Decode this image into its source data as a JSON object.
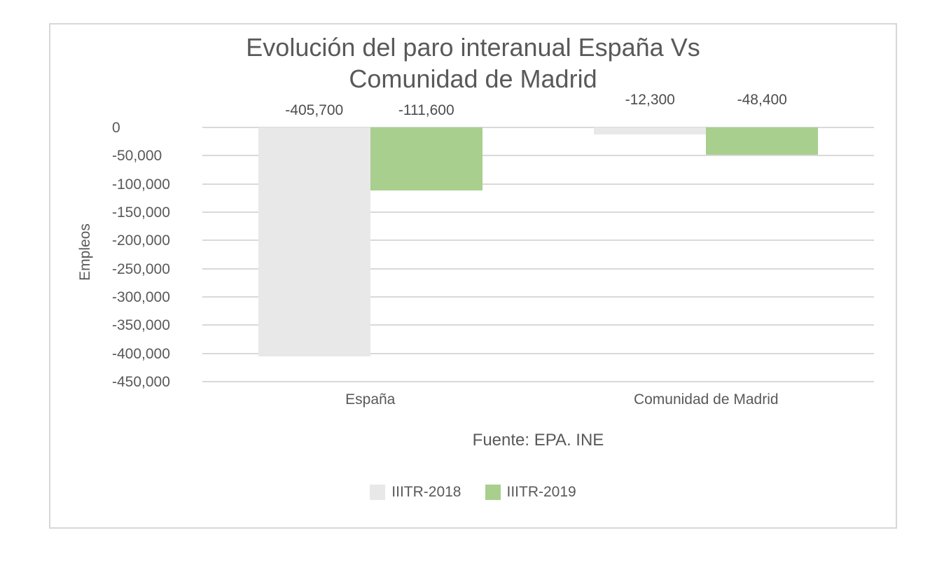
{
  "chart_data": {
    "type": "bar",
    "title": [
      "Evolución del paro interanual España Vs",
      "Comunidad de Madrid"
    ],
    "ylabel": "Empleos",
    "source_note": "Fuente: EPA. INE",
    "categories": [
      "España",
      "Comunidad de Madrid"
    ],
    "series": [
      {
        "name": "IIITR-2018",
        "color": "#E8E8E8",
        "values": [
          -405700,
          -12300
        ],
        "labels": [
          "-405,700",
          "-12,300"
        ]
      },
      {
        "name": "IIITR-2019",
        "color": "#A8CF8D",
        "values": [
          -111600,
          -48400
        ],
        "labels": [
          "-111,600",
          "-48,400"
        ]
      }
    ],
    "ylim": [
      -450000,
      0
    ],
    "yticks": [
      0,
      -50000,
      -100000,
      -150000,
      -200000,
      -250000,
      -300000,
      -350000,
      -400000,
      -450000
    ],
    "ytick_labels": [
      "0",
      "-50,000",
      "-100,000",
      "-150,000",
      "-200,000",
      "-250,000",
      "-300,000",
      "-350,000",
      "-400,000",
      "-450,000"
    ],
    "grid": true,
    "legend_position": "bottom",
    "colors": {
      "grid": "#D9D9D9",
      "text": "#595959",
      "border": "#D7D7D7",
      "background": "#FFFFFF"
    }
  }
}
